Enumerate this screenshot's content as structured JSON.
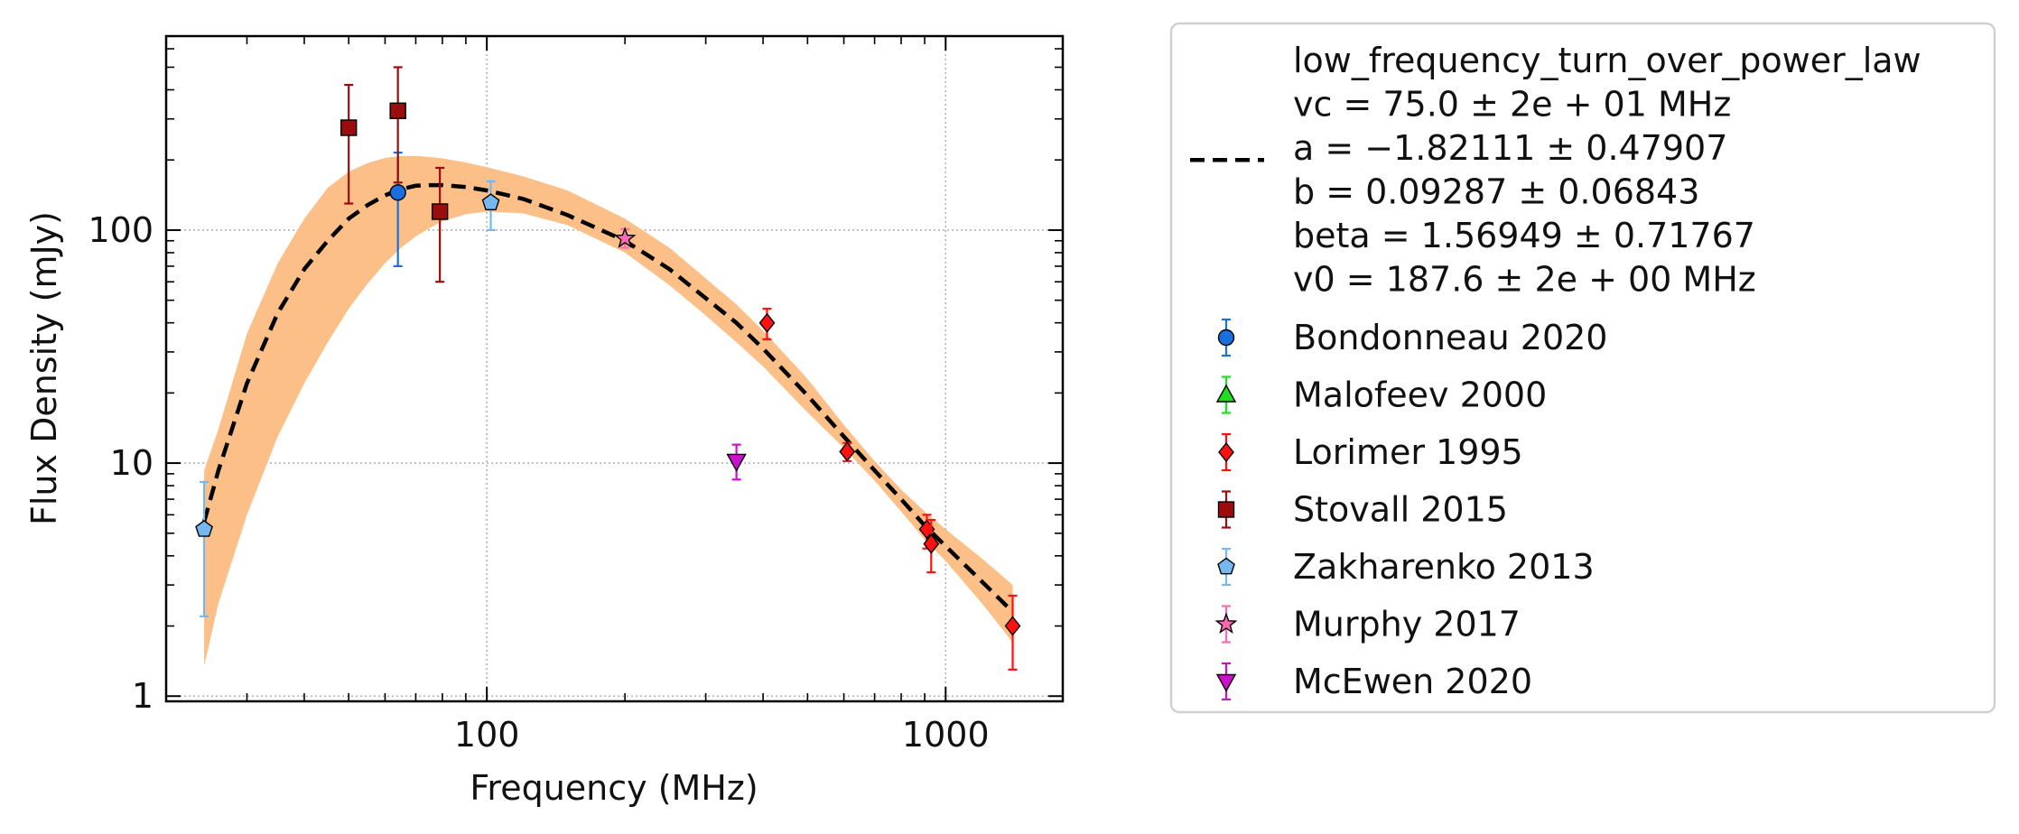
{
  "chart_data": {
    "type": "scatter",
    "title": "",
    "xlabel": "Frequency (MHz)",
    "ylabel": "Flux Density (mJy)",
    "x_scale": "log",
    "y_scale": "log",
    "xlim": [
      20,
      1800
    ],
    "ylim": [
      0.95,
      680
    ],
    "x_tick_labels": [
      {
        "value": 100,
        "label": "100"
      },
      {
        "value": 1000,
        "label": "1000"
      }
    ],
    "y_tick_labels": [
      {
        "value": 1,
        "label": "1"
      },
      {
        "value": 10,
        "label": "10"
      },
      {
        "value": 100,
        "label": "100"
      }
    ],
    "grid": true,
    "legend_position": "outside-right",
    "fit": {
      "model_name": "low_frequency_turn_over_power_law",
      "legend_lines": [
        "low_frequency_turn_over_power_law",
        "vc = 75.0 ± 2e + 01 MHz",
        "a = −1.82111 ± 0.47907",
        "b = 0.09287 ± 0.06843",
        "beta = 1.56949 ± 0.71767",
        "v0 = 187.6 ± 2e + 00 MHz"
      ],
      "line_color": "#000000",
      "band_color": "#fdbf88",
      "x": [
        24.2,
        26,
        30,
        35,
        40,
        45,
        50,
        55,
        60,
        65,
        70,
        75,
        80,
        90,
        100,
        120,
        150,
        200,
        250,
        300,
        350,
        400,
        500,
        600,
        700,
        800,
        900,
        1000,
        1200,
        1400
      ],
      "y": [
        5.6,
        9.3,
        22,
        44,
        68,
        90,
        112,
        128,
        141,
        150,
        155,
        156,
        156,
        153,
        148,
        136,
        116,
        90,
        68,
        51,
        40,
        31,
        19.5,
        13.0,
        9.3,
        7.0,
        5.4,
        4.4,
        3.1,
        2.3
      ],
      "upper": [
        9.3,
        14,
        36,
        72,
        112,
        152,
        178,
        194,
        204,
        208,
        208,
        206,
        203,
        195,
        186,
        170,
        148,
        112,
        84,
        62,
        48,
        37,
        23,
        14.6,
        10.2,
        7.7,
        6.2,
        5.2,
        3.9,
        3.0
      ],
      "lower": [
        1.35,
        2.5,
        6.0,
        13,
        22,
        33,
        46,
        59,
        72,
        84,
        94,
        102,
        109,
        117,
        120,
        118,
        105,
        80,
        58,
        43,
        33,
        26,
        16.5,
        11.6,
        8.4,
        6.2,
        4.7,
        3.8,
        2.5,
        1.7
      ]
    },
    "series": [
      {
        "name": "Bondonneau 2020",
        "marker": "circle",
        "color": "#1a6fdf",
        "points": [
          {
            "x": 64,
            "y": 145,
            "lo": 70,
            "hi": 215
          }
        ]
      },
      {
        "name": "Malofeev 2000",
        "marker": "triangle-up",
        "color": "#22dd22",
        "points": []
      },
      {
        "name": "Lorimer 1995",
        "marker": "diamond",
        "color": "#ff1111",
        "points": [
          {
            "x": 408,
            "y": 40,
            "lo": 34,
            "hi": 46
          },
          {
            "x": 610,
            "y": 11.2,
            "lo": 10.2,
            "hi": 12.2
          },
          {
            "x": 910,
            "y": 5.2,
            "lo": 4.3,
            "hi": 6.0
          },
          {
            "x": 930,
            "y": 4.5,
            "lo": 3.4,
            "hi": 5.7
          },
          {
            "x": 1400,
            "y": 2.0,
            "lo": 1.3,
            "hi": 2.7
          }
        ]
      },
      {
        "name": "Stovall 2015",
        "marker": "square",
        "color": "#9b0d0d",
        "points": [
          {
            "x": 50,
            "y": 275,
            "lo": 130,
            "hi": 420
          },
          {
            "x": 64,
            "y": 325,
            "lo": 160,
            "hi": 500
          },
          {
            "x": 79,
            "y": 120,
            "lo": 60,
            "hi": 185
          }
        ]
      },
      {
        "name": "Zakharenko 2013",
        "marker": "pentagon",
        "color": "#74b8ef",
        "points": [
          {
            "x": 24.2,
            "y": 5.2,
            "lo": 2.2,
            "hi": 8.3
          },
          {
            "x": 102,
            "y": 131,
            "lo": 100,
            "hi": 162
          }
        ]
      },
      {
        "name": "Murphy 2017",
        "marker": "star",
        "color": "#ff69b4",
        "points": [
          {
            "x": 200,
            "y": 92,
            "lo": 84,
            "hi": 101
          }
        ]
      },
      {
        "name": "McEwen 2020",
        "marker": "triangle-down",
        "color": "#cc11cc",
        "points": [
          {
            "x": 350,
            "y": 10.2,
            "lo": 8.5,
            "hi": 12.0
          }
        ]
      }
    ]
  }
}
